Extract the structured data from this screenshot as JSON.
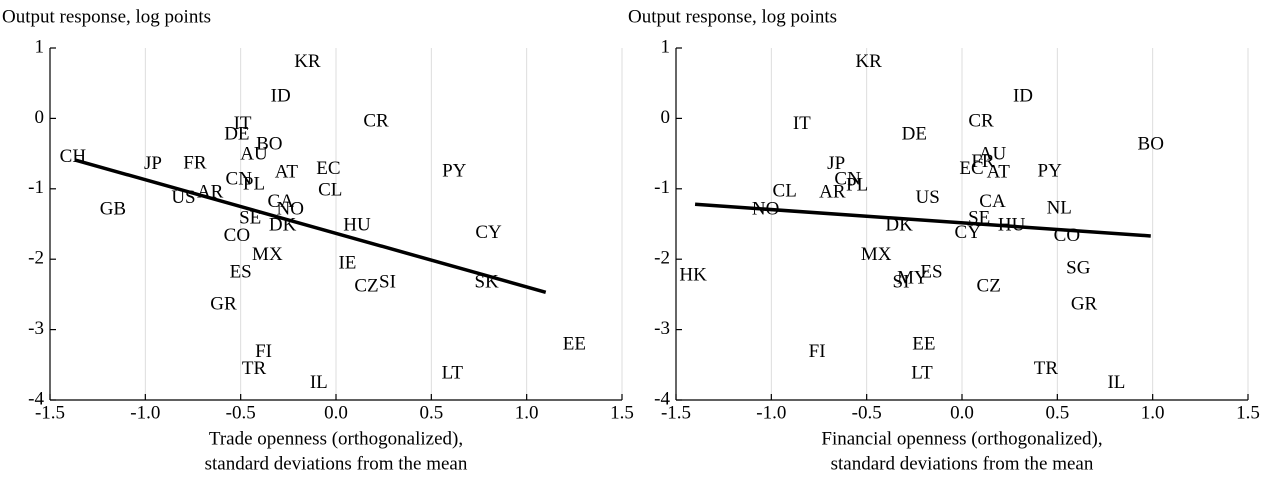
{
  "chart_data": [
    {
      "type": "scatter",
      "title": "Output response, log points",
      "xlabel": [
        "Trade openness (orthogonalized),",
        "standard deviations from the mean"
      ],
      "labels": [
        "KR",
        "ID",
        "CR",
        "IT",
        "DE",
        "BO",
        "AU",
        "CH",
        "JP",
        "FR",
        "EC",
        "AT",
        "PY",
        "CN",
        "PL",
        "CL",
        "AR",
        "US",
        "GB",
        "CA",
        "NO",
        "SE",
        "HU",
        "DK",
        "CY",
        "CO",
        "MX",
        "IE",
        "ES",
        "SK",
        "CZ",
        "SI",
        "GR",
        "EE",
        "FI",
        "TR",
        "LT",
        "IL"
      ],
      "x": [
        -0.15,
        -0.29,
        0.21,
        -0.49,
        -0.52,
        -0.35,
        -0.43,
        -1.38,
        -0.96,
        -0.74,
        -0.04,
        -0.26,
        0.62,
        -0.51,
        -0.43,
        -0.03,
        -0.66,
        -0.8,
        -1.17,
        -0.29,
        -0.24,
        -0.45,
        0.11,
        -0.28,
        0.8,
        -0.52,
        -0.36,
        0.06,
        -0.5,
        0.79,
        0.16,
        0.27,
        -0.59,
        1.25,
        -0.38,
        -0.43,
        0.61,
        -0.09
      ],
      "values": [
        0.79,
        0.3,
        -0.05,
        -0.09,
        -0.24,
        -0.38,
        -0.52,
        -0.56,
        -0.66,
        -0.65,
        -0.73,
        -0.78,
        -0.76,
        -0.88,
        -0.95,
        -1.03,
        -1.06,
        -1.14,
        -1.3,
        -1.2,
        -1.3,
        -1.43,
        -1.53,
        -1.53,
        -1.64,
        -1.68,
        -1.95,
        -2.07,
        -2.2,
        -2.34,
        -2.4,
        -2.34,
        -2.65,
        -3.22,
        -3.33,
        -3.57,
        -3.63,
        -3.77
      ],
      "fit": {
        "x": [
          -1.37,
          1.1
        ],
        "values": [
          -0.59,
          -2.47
        ]
      },
      "xlim": [
        -1.5,
        1.5
      ],
      "ylim": [
        -4,
        1
      ],
      "xticks": [
        -1.5,
        {
          "value": -1,
          "label": "-1.0"
        },
        -0.5,
        {
          "value": 0,
          "label": "0.0"
        },
        0.5,
        {
          "value": 1,
          "label": "1.0"
        },
        1.5
      ],
      "yticks": [
        1,
        0,
        -1,
        -2,
        -3,
        -4
      ],
      "grid": true
    },
    {
      "type": "scatter",
      "title": "Output response, log points",
      "xlabel": [
        "Financial openness (orthogonalized),",
        "standard deviations from the mean"
      ],
      "labels": [
        "KR",
        "ID",
        "CR",
        "IT",
        "DE",
        "BO",
        "AU",
        "FR",
        "JP",
        "EC",
        "AT",
        "PY",
        "CN",
        "PL",
        "CL",
        "AR",
        "US",
        "CA",
        "NL",
        "NO",
        "SE",
        "HU",
        "DK",
        "CY",
        "CO",
        "MX",
        "SG",
        "ES",
        "MY",
        "SI",
        "HK",
        "CZ",
        "GR",
        "EE",
        "FI",
        "TR",
        "LT",
        "IL"
      ],
      "x": [
        -0.49,
        0.32,
        0.1,
        -0.84,
        -0.25,
        0.99,
        0.16,
        0.11,
        -0.66,
        0.05,
        0.19,
        0.46,
        -0.6,
        -0.55,
        -0.93,
        -0.68,
        -0.18,
        0.16,
        0.51,
        -1.03,
        0.09,
        0.26,
        -0.33,
        0.03,
        0.55,
        -0.45,
        0.61,
        -0.16,
        -0.26,
        -0.32,
        -1.41,
        0.14,
        0.64,
        -0.2,
        -0.76,
        0.44,
        -0.21,
        0.81
      ],
      "values": [
        0.79,
        0.3,
        -0.05,
        -0.09,
        -0.24,
        -0.38,
        -0.52,
        -0.63,
        -0.66,
        -0.73,
        -0.78,
        -0.76,
        -0.88,
        -0.96,
        -1.05,
        -1.06,
        -1.14,
        -1.2,
        -1.29,
        -1.3,
        -1.43,
        -1.53,
        -1.53,
        -1.64,
        -1.68,
        -1.95,
        -2.14,
        -2.2,
        -2.28,
        -2.34,
        -2.24,
        -2.4,
        -2.65,
        -3.22,
        -3.33,
        -3.57,
        -3.63,
        -3.77
      ],
      "fit": {
        "x": [
          -1.4,
          0.99
        ],
        "values": [
          -1.22,
          -1.67
        ]
      },
      "xlim": [
        -1.5,
        1.5
      ],
      "ylim": [
        -4,
        1
      ],
      "xticks": [
        -1.5,
        {
          "value": -1,
          "label": "-1.0"
        },
        -0.5,
        {
          "value": 0,
          "label": "0.0"
        },
        0.5,
        {
          "value": 1,
          "label": "1.0"
        },
        1.5
      ],
      "yticks": [
        1,
        0,
        -1,
        -2,
        -3,
        -4
      ],
      "grid": true
    }
  ]
}
